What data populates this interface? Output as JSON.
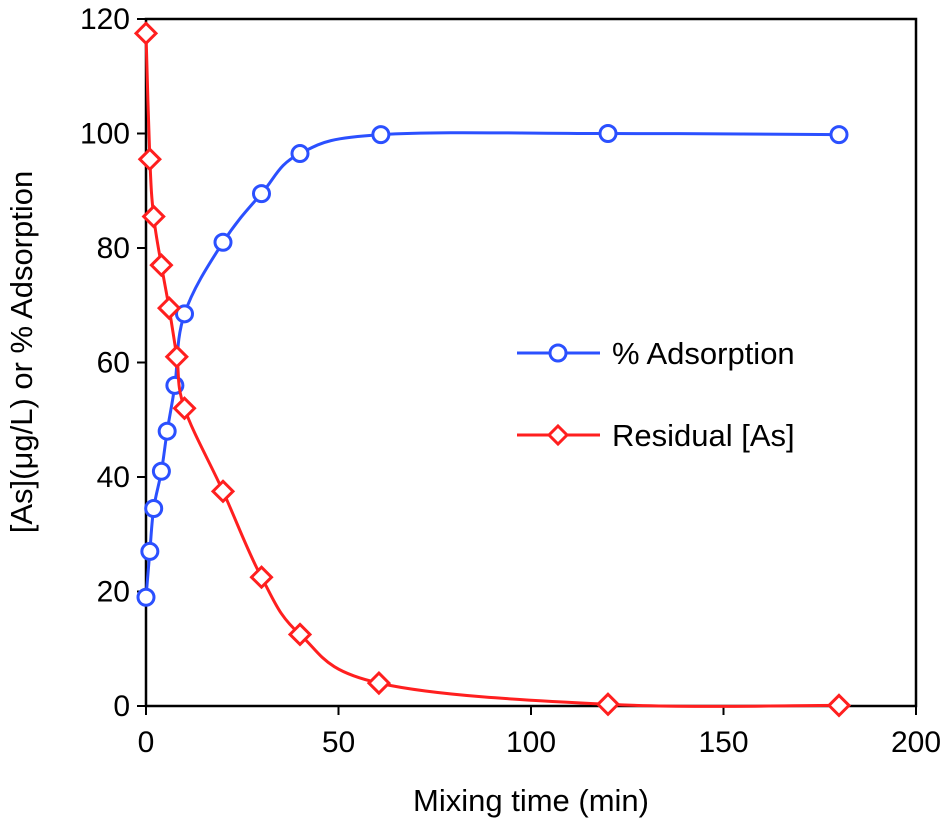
{
  "chart_data": {
    "type": "line",
    "title": "",
    "xlabel": "Mixing time (min)",
    "ylabel": "[As](μg/L) or % Adsorption",
    "xlim": [
      0,
      200
    ],
    "ylim": [
      0,
      120
    ],
    "xticks": [
      0,
      50,
      100,
      150,
      200
    ],
    "yticks": [
      0,
      20,
      40,
      60,
      80,
      100,
      120
    ],
    "grid": false,
    "legend_position": "center-right",
    "series": [
      {
        "name": "% Adsorption",
        "color": "#2b50ff",
        "marker": "circle",
        "smooth": true,
        "points": [
          [
            0,
            19
          ],
          [
            1,
            27
          ],
          [
            2,
            34.5
          ],
          [
            4,
            41
          ],
          [
            5.5,
            48
          ],
          [
            7.5,
            56
          ],
          [
            10,
            68.5
          ],
          [
            20,
            81
          ],
          [
            30,
            89.5
          ],
          [
            40,
            96.5
          ],
          [
            61,
            99.8
          ],
          [
            120,
            100
          ],
          [
            180,
            99.8
          ]
        ]
      },
      {
        "name": "Residual [As]",
        "color": "#ff1f1f",
        "marker": "diamond",
        "smooth": true,
        "points": [
          [
            0,
            117.5
          ],
          [
            1,
            95.5
          ],
          [
            2,
            85.5
          ],
          [
            4,
            77
          ],
          [
            6,
            69.5
          ],
          [
            8,
            61
          ],
          [
            10,
            52
          ],
          [
            20,
            37.5
          ],
          [
            30,
            22.5
          ],
          [
            40,
            12.5
          ],
          [
            60.5,
            4
          ],
          [
            120,
            0.3
          ],
          [
            180,
            0.1
          ]
        ]
      }
    ]
  }
}
